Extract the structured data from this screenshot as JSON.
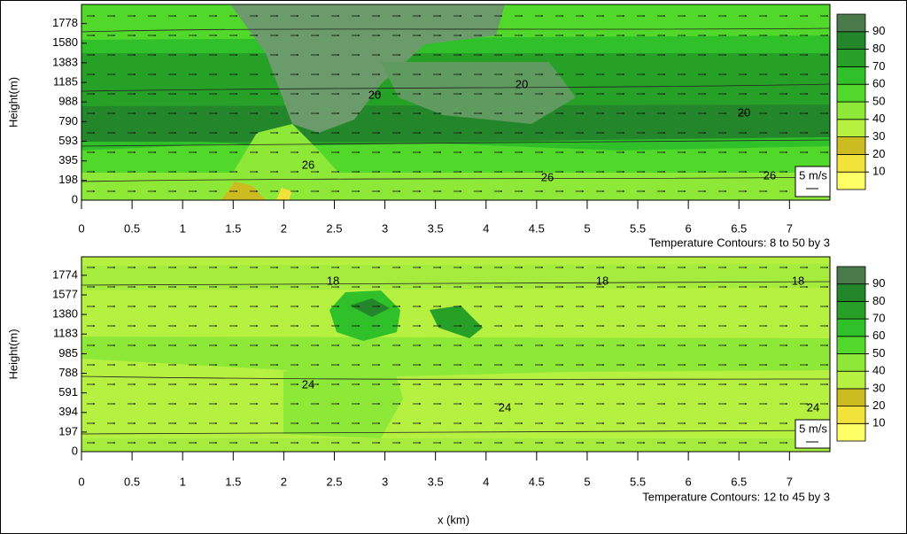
{
  "chart_data": [
    {
      "type": "contour",
      "y_label": "Height(m)",
      "xlim": [
        0,
        7.4
      ],
      "xticks": [
        0,
        0.5,
        1,
        1.5,
        2,
        2.5,
        3,
        3.5,
        4,
        4.5,
        5,
        5.5,
        6,
        6.5,
        7
      ],
      "ylim": [
        0,
        1970
      ],
      "yticks": [
        0,
        198,
        395,
        593,
        790,
        988,
        1185,
        1383,
        1580,
        1778
      ],
      "annotation": "Temperature Contours: 8 to 50 by 3",
      "vector_key": "5 m/s",
      "contour_labels": [
        20,
        20,
        20,
        26,
        26,
        26
      ],
      "colorbar": {
        "lim": [
          0,
          100
        ],
        "ticks": [
          10,
          20,
          30,
          40,
          50,
          60,
          70,
          80,
          90
        ],
        "colors": [
          "#ffff66",
          "#f2e23a",
          "#cdbb22",
          "#b6f040",
          "#8ee838",
          "#52d82a",
          "#2fc02a",
          "#26a026",
          "#24862a",
          "#4a7a4a"
        ]
      }
    },
    {
      "type": "contour",
      "y_label": "Height(m)",
      "x_label": "x (km)",
      "xlim": [
        0,
        7.4
      ],
      "xticks": [
        0,
        0.5,
        1,
        1.5,
        2,
        2.5,
        3,
        3.5,
        4,
        4.5,
        5,
        5.5,
        6,
        6.5,
        7
      ],
      "ylim": [
        0,
        1960
      ],
      "yticks": [
        0,
        197,
        394,
        591,
        788,
        985,
        1183,
        1380,
        1577,
        1774
      ],
      "annotation": "Temperature Contours: 12 to 45 by 3",
      "vector_key": "5 m/s",
      "contour_labels": [
        18,
        18,
        18,
        24,
        24,
        24
      ],
      "colorbar": {
        "lim": [
          0,
          100
        ],
        "ticks": [
          10,
          20,
          30,
          40,
          50,
          60,
          70,
          80,
          90
        ],
        "colors": [
          "#ffff66",
          "#f2e23a",
          "#cdbb22",
          "#b6f040",
          "#8ee838",
          "#52d82a",
          "#2fc02a",
          "#26a026",
          "#24862a",
          "#4a7a4a"
        ]
      }
    }
  ]
}
